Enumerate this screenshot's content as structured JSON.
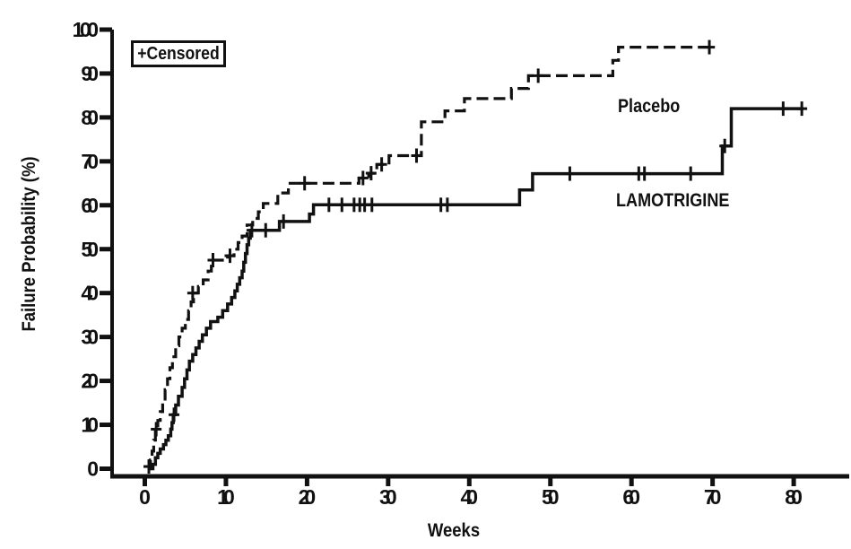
{
  "colors": {
    "ink": "#111111",
    "paper": "#ffffff"
  },
  "chart_data": {
    "type": "line",
    "subtype": "kaplan-meier-step",
    "title": "",
    "xlabel": "Weeks",
    "ylabel": "Failure Probability (%)",
    "x_ticks": [
      0,
      10,
      20,
      30,
      40,
      50,
      60,
      70,
      80
    ],
    "y_ticks": [
      0,
      10,
      20,
      30,
      40,
      50,
      60,
      70,
      80,
      90,
      100
    ],
    "xlim": [
      0,
      80
    ],
    "ylim": [
      0,
      100
    ],
    "grid": "off",
    "legend": {
      "censored_label": "+Censored",
      "position": "top-left"
    },
    "series": [
      {
        "name": "Placebo",
        "style": "dashed",
        "end_week": 70.3,
        "points": [
          [
            0.4,
            0
          ],
          [
            0.7,
            2
          ],
          [
            0.9,
            4
          ],
          [
            1.1,
            6.5
          ],
          [
            1.3,
            9
          ],
          [
            1.6,
            11
          ],
          [
            1.9,
            13
          ],
          [
            2.2,
            15.5
          ],
          [
            2.5,
            18
          ],
          [
            2.8,
            20.5
          ],
          [
            3.1,
            23
          ],
          [
            3.4,
            25.5
          ],
          [
            3.8,
            28
          ],
          [
            4.2,
            30
          ],
          [
            4.6,
            32
          ],
          [
            5.0,
            34
          ],
          [
            5.4,
            36
          ],
          [
            5.7,
            38
          ],
          [
            6.0,
            40
          ],
          [
            6.6,
            41.5
          ],
          [
            7.2,
            43
          ],
          [
            7.8,
            45
          ],
          [
            8.2,
            47.5
          ],
          [
            10.2,
            48.5
          ],
          [
            11.0,
            50
          ],
          [
            11.5,
            51.5
          ],
          [
            12.0,
            53
          ],
          [
            12.6,
            55.5
          ],
          [
            13.3,
            57
          ],
          [
            14.0,
            58.5
          ],
          [
            14.6,
            60.4
          ],
          [
            16.4,
            62.8
          ],
          [
            17.7,
            65
          ],
          [
            26.4,
            66.2
          ],
          [
            27.6,
            67.3
          ],
          [
            28.6,
            69.3
          ],
          [
            30.1,
            71.3
          ],
          [
            34.1,
            79
          ],
          [
            37.0,
            81.5
          ],
          [
            39.4,
            84.3
          ],
          [
            45.2,
            86.6
          ],
          [
            47.3,
            89.5
          ],
          [
            57.7,
            93
          ],
          [
            58.4,
            96
          ]
        ],
        "censored": [
          [
            0.5,
            0.5
          ],
          [
            1.4,
            9
          ],
          [
            5.9,
            40
          ],
          [
            8.4,
            47.5
          ],
          [
            10.5,
            48.5
          ],
          [
            19.7,
            65
          ],
          [
            26.9,
            66.2
          ],
          [
            27.9,
            67.3
          ],
          [
            29.2,
            69.3
          ],
          [
            33.5,
            71.3
          ],
          [
            48.5,
            89.5
          ],
          [
            69.6,
            96
          ]
        ]
      },
      {
        "name": "LAMOTRIGINE",
        "style": "solid",
        "end_week": 81.2,
        "points": [
          [
            0.6,
            0
          ],
          [
            1.0,
            1
          ],
          [
            1.3,
            2.5
          ],
          [
            1.6,
            3.5
          ],
          [
            1.9,
            4.5
          ],
          [
            2.3,
            5.5
          ],
          [
            2.6,
            6.5
          ],
          [
            2.9,
            7.5
          ],
          [
            3.2,
            9
          ],
          [
            3.35,
            10.5
          ],
          [
            3.5,
            12.3
          ],
          [
            3.8,
            14.5
          ],
          [
            4.15,
            16.5
          ],
          [
            4.6,
            18.5
          ],
          [
            4.9,
            20.5
          ],
          [
            5.2,
            22.5
          ],
          [
            5.5,
            24.5
          ],
          [
            5.9,
            26
          ],
          [
            6.3,
            27.5
          ],
          [
            6.7,
            29
          ],
          [
            7.1,
            30.5
          ],
          [
            7.6,
            32
          ],
          [
            8.1,
            33.5
          ],
          [
            9.0,
            34.5
          ],
          [
            9.6,
            36
          ],
          [
            10.2,
            37.5
          ],
          [
            10.7,
            39
          ],
          [
            11.1,
            40.5
          ],
          [
            11.4,
            42
          ],
          [
            11.7,
            43.5
          ],
          [
            12.0,
            45
          ],
          [
            12.2,
            47
          ],
          [
            12.4,
            49
          ],
          [
            12.6,
            51
          ],
          [
            12.8,
            52.5
          ],
          [
            13.0,
            54.3
          ],
          [
            16.6,
            56.3
          ],
          [
            20.3,
            58
          ],
          [
            20.8,
            60.1
          ],
          [
            46.2,
            63.5
          ],
          [
            47.8,
            67.2
          ],
          [
            71.2,
            73.5
          ],
          [
            72.3,
            82
          ]
        ],
        "censored": [
          [
            3.6,
            12.3
          ],
          [
            13.2,
            54.3
          ],
          [
            14.9,
            54.3
          ],
          [
            17.1,
            56.3
          ],
          [
            22.7,
            60.1
          ],
          [
            24.3,
            60.1
          ],
          [
            25.8,
            60.1
          ],
          [
            26.5,
            60.1
          ],
          [
            27.1,
            60.1
          ],
          [
            28.0,
            60.1
          ],
          [
            36.5,
            60.1
          ],
          [
            37.3,
            60.1
          ],
          [
            52.4,
            67.2
          ],
          [
            60.9,
            67.2
          ],
          [
            61.6,
            67.2
          ],
          [
            67.3,
            67.2
          ],
          [
            71.5,
            73.5
          ],
          [
            78.7,
            82
          ],
          [
            81.0,
            82
          ]
        ]
      }
    ]
  }
}
